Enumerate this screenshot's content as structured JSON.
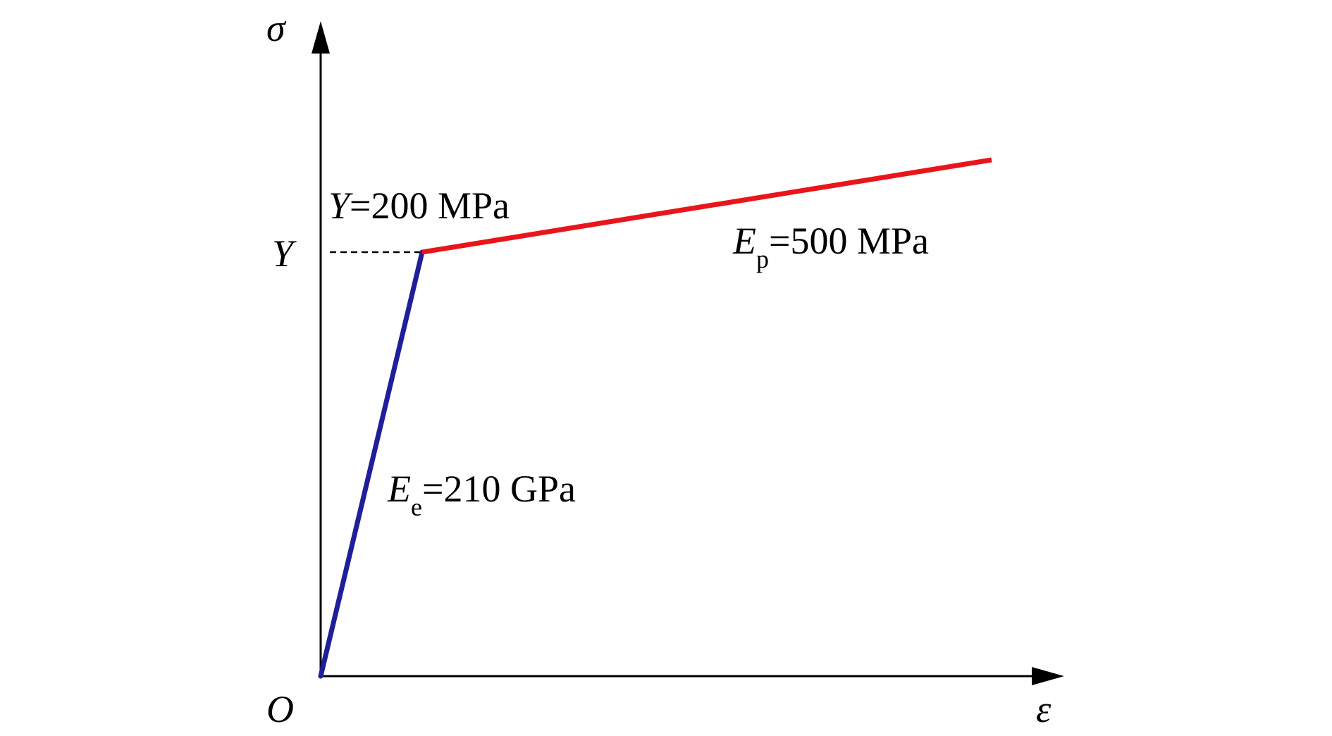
{
  "diagram": {
    "axes": {
      "y_axis_label": "σ",
      "x_axis_label": "ε",
      "origin_label": "O",
      "yield_tick_label": "Y"
    },
    "annotations": {
      "yield": {
        "symbol": "Y",
        "value": "=200 MPa"
      },
      "plastic_modulus": {
        "symbol": "E",
        "subscript": "p",
        "value": "=500 MPa"
      },
      "elastic_modulus": {
        "symbol": "E",
        "subscript": "e",
        "value": "=210 GPa"
      }
    },
    "colors": {
      "elastic_segment": "#1f1f9a",
      "plastic_segment": "#e8161b",
      "axes": "#000000"
    }
  }
}
